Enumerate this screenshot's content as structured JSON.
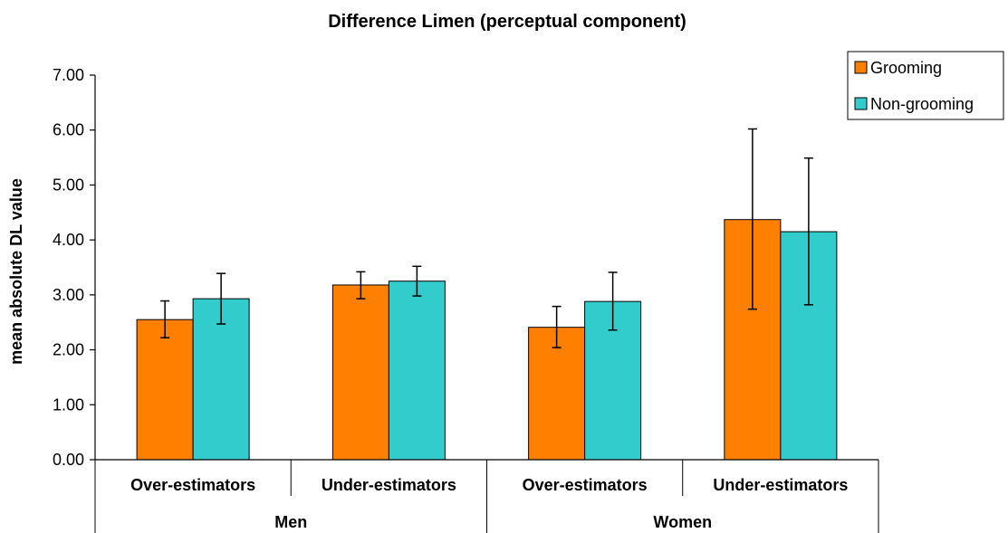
{
  "chart_data": {
    "type": "bar",
    "title": "Difference Limen (perceptual component)",
    "ylabel": "mean absolute DL value",
    "xlabel": "",
    "ylim": [
      0,
      7
    ],
    "yticks": [
      "0.00",
      "1.00",
      "2.00",
      "3.00",
      "4.00",
      "5.00",
      "6.00",
      "7.00"
    ],
    "categories": [
      "Over-estimators",
      "Under-estimators",
      "Over-estimators",
      "Under-estimators"
    ],
    "groups": [
      "Men",
      "Women"
    ],
    "series": [
      {
        "name": "Grooming",
        "color": "#ff7f00",
        "values": [
          2.55,
          3.18,
          2.41,
          4.37
        ],
        "err_low": [
          2.22,
          2.93,
          2.04,
          2.74
        ],
        "err_high": [
          2.89,
          3.42,
          2.79,
          6.02
        ]
      },
      {
        "name": "Non-grooming",
        "color": "#33cccc",
        "values": [
          2.93,
          3.25,
          2.88,
          4.15
        ],
        "err_low": [
          2.47,
          2.98,
          2.36,
          2.82
        ],
        "err_high": [
          3.39,
          3.52,
          3.41,
          5.49
        ]
      }
    ],
    "legend": "top-right",
    "grid": false
  }
}
